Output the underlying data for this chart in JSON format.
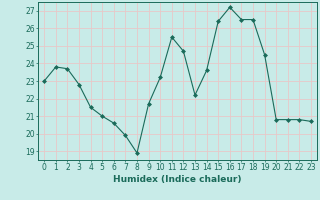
{
  "x": [
    0,
    1,
    2,
    3,
    4,
    5,
    6,
    7,
    8,
    9,
    10,
    11,
    12,
    13,
    14,
    15,
    16,
    17,
    18,
    19,
    20,
    21,
    22,
    23
  ],
  "y": [
    23.0,
    23.8,
    23.7,
    22.8,
    21.5,
    21.0,
    20.6,
    19.9,
    18.9,
    21.7,
    23.2,
    25.5,
    24.7,
    22.2,
    23.6,
    26.4,
    27.2,
    26.5,
    26.5,
    24.5,
    20.8,
    20.8,
    20.8,
    20.7
  ],
  "line_color": "#1a6b5a",
  "marker": "D",
  "marker_size": 2.0,
  "bg_color": "#c8ebe8",
  "grid_color": "#e8c8c8",
  "xlabel": "Humidex (Indice chaleur)",
  "ylim": [
    18.5,
    27.5
  ],
  "xlim": [
    -0.5,
    23.5
  ],
  "yticks": [
    19,
    20,
    21,
    22,
    23,
    24,
    25,
    26,
    27
  ],
  "xticks": [
    0,
    1,
    2,
    3,
    4,
    5,
    6,
    7,
    8,
    9,
    10,
    11,
    12,
    13,
    14,
    15,
    16,
    17,
    18,
    19,
    20,
    21,
    22,
    23
  ],
  "tick_color": "#1a6b5a",
  "label_fontsize": 6.5,
  "tick_fontsize": 5.5
}
